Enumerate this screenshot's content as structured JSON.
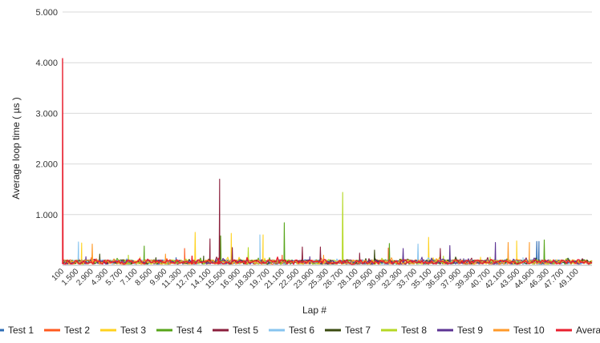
{
  "chart_data": {
    "type": "line",
    "title": "",
    "xlabel": "Lap #",
    "ylabel": "Average loop time ( µs )",
    "ylim": [
      0,
      5000
    ],
    "yticks": [
      {
        "value": 0,
        "label": ""
      },
      {
        "value": 1000,
        "label": "1.000"
      },
      {
        "value": 2000,
        "label": "2.000"
      },
      {
        "value": 3000,
        "label": "3.000"
      },
      {
        "value": 4000,
        "label": "4.000"
      },
      {
        "value": 5000,
        "label": "5.000"
      }
    ],
    "xlim": [
      100,
      50000
    ],
    "xticks": [
      "100",
      "1.500",
      "2.900",
      "4.300",
      "5.700",
      "7.100",
      "8.500",
      "9.900",
      "11.300",
      "12.700",
      "14.100",
      "15.500",
      "16.900",
      "18.300",
      "19.700",
      "21.100",
      "22.500",
      "23.900",
      "25.300",
      "26.700",
      "28.100",
      "29.500",
      "30.900",
      "32.300",
      "33.700",
      "35.100",
      "36.500",
      "37.900",
      "39.300",
      "40.700",
      "42.100",
      "43.500",
      "44.900",
      "46.300",
      "47.700",
      "49.100"
    ],
    "grid": true,
    "legend_position": "bottom",
    "baseline_noise_range": [
      20,
      110
    ],
    "series": [
      {
        "name": "Test 1",
        "color": "#2f6db5",
        "spikes": [
          [
            10800,
            150
          ],
          [
            35700,
            110
          ],
          [
            44800,
            470
          ],
          [
            45000,
            470
          ]
        ]
      },
      {
        "name": "Test 2",
        "color": "#ff5a1f",
        "spikes": [
          [
            11600,
            330
          ],
          [
            30800,
            340
          ],
          [
            20800,
            200
          ]
        ]
      },
      {
        "name": "Test 3",
        "color": "#ffd21f",
        "spikes": [
          [
            1900,
            440
          ],
          [
            7400,
            160
          ],
          [
            12600,
            650
          ],
          [
            16000,
            630
          ],
          [
            19000,
            600
          ],
          [
            34600,
            550
          ],
          [
            39500,
            160
          ],
          [
            42900,
            480
          ]
        ]
      },
      {
        "name": "Test 4",
        "color": "#57a51a",
        "spikes": [
          [
            7800,
            380
          ],
          [
            15000,
            580
          ],
          [
            21000,
            840
          ],
          [
            30900,
            430
          ],
          [
            45500,
            500
          ],
          [
            47600,
            130
          ]
        ]
      },
      {
        "name": "Test 5",
        "color": "#8b1f3c",
        "spikes": [
          [
            14000,
            520
          ],
          [
            14900,
            1700
          ],
          [
            16100,
            350
          ],
          [
            22700,
            360
          ],
          [
            24400,
            360
          ],
          [
            28100,
            240
          ],
          [
            35700,
            330
          ]
        ]
      },
      {
        "name": "Test 6",
        "color": "#87c4ef",
        "spikes": [
          [
            1600,
            460
          ],
          [
            18700,
            600
          ],
          [
            33600,
            420
          ],
          [
            43500,
            150
          ],
          [
            47800,
            140
          ]
        ]
      },
      {
        "name": "Test 7",
        "color": "#3a4b10",
        "spikes": [
          [
            3600,
            220
          ],
          [
            8900,
            150
          ],
          [
            13400,
            180
          ],
          [
            29500,
            300
          ],
          [
            31900,
            120
          ]
        ]
      },
      {
        "name": "Test 8",
        "color": "#b5d825",
        "spikes": [
          [
            6300,
            200
          ],
          [
            17600,
            350
          ],
          [
            26500,
            1440
          ],
          [
            36000,
            180
          ],
          [
            40400,
            160
          ]
        ]
      },
      {
        "name": "Test 9",
        "color": "#5d3494",
        "spikes": [
          [
            2300,
            170
          ],
          [
            23400,
            170
          ],
          [
            32200,
            330
          ],
          [
            36600,
            390
          ],
          [
            40900,
            450
          ],
          [
            37900,
            130
          ]
        ]
      },
      {
        "name": "Test 10",
        "color": "#ff9a2a",
        "spikes": [
          [
            2900,
            420
          ],
          [
            9800,
            220
          ],
          [
            24700,
            200
          ],
          [
            42100,
            450
          ],
          [
            44100,
            450
          ]
        ]
      },
      {
        "name": "Average",
        "color": "#e8202f",
        "spikes": [
          [
            100,
            4080
          ],
          [
            12300,
            180
          ],
          [
            14800,
            140
          ]
        ]
      }
    ]
  }
}
